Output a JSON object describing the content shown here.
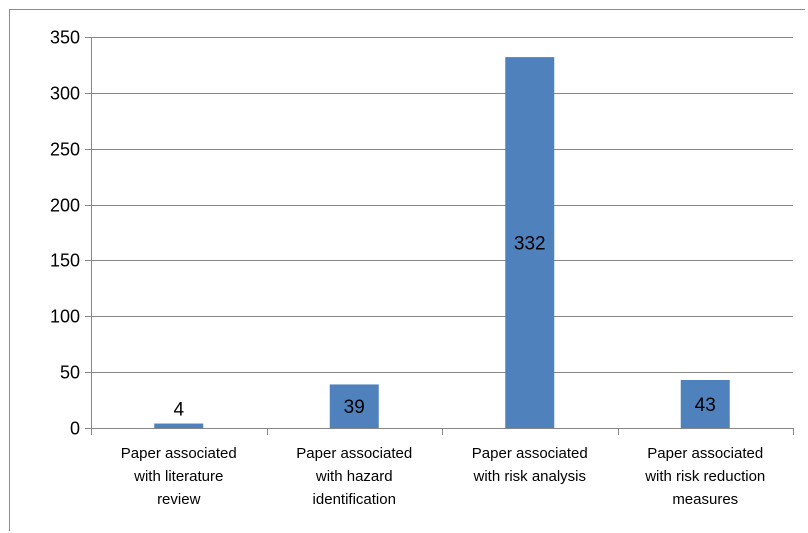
{
  "chart_data": {
    "type": "bar",
    "title": "",
    "xlabel": "",
    "ylabel": "",
    "categories": [
      [
        "Paper associated",
        "with literature",
        "review"
      ],
      [
        "Paper associated",
        "with hazard",
        "identification"
      ],
      [
        "Paper associated",
        "with risk analysis"
      ],
      [
        "Paper associated",
        "with risk reduction",
        "measures"
      ]
    ],
    "values": [
      4,
      39,
      332,
      43
    ],
    "data_labels": [
      "4",
      "39",
      "332",
      "43"
    ],
    "ylim": [
      0,
      350
    ],
    "yticks": [
      0,
      50,
      100,
      150,
      200,
      250,
      300,
      350
    ],
    "grid": true,
    "legend": "none",
    "bar_color": "#4F81BD",
    "gridline_color": "#868686",
    "axis_color": "#868686"
  }
}
